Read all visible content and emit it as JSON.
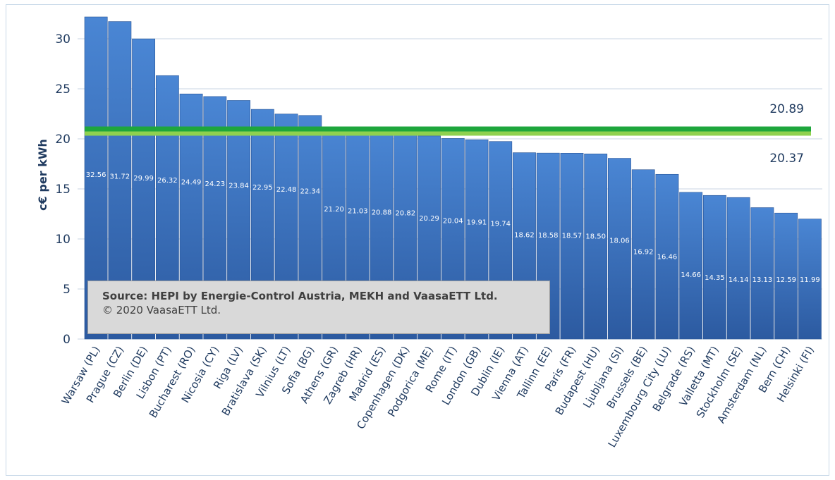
{
  "chart_data": {
    "type": "bar",
    "title": "",
    "xlabel": "",
    "ylabel": "c€ per kWh",
    "ylim": [
      0,
      32
    ],
    "yticks": [
      0,
      5,
      10,
      15,
      20,
      25,
      30
    ],
    "grid": true,
    "categories": [
      "Warsaw (PL)",
      "Prague (CZ)",
      "Berlin (DE)",
      "Lisbon (PT)",
      "Bucharest (RO)",
      "Nicosia (CY)",
      "Riga (LV)",
      "Bratislava (SK)",
      "Vilnius (LT)",
      "Sofia (BG)",
      "Athens (GR)",
      "Zagreb (HR)",
      "Madrid (ES)",
      "Copenhagen (DK)",
      "Podgorica (ME)",
      "Rome (IT)",
      "London (GB)",
      "Dublin (IE)",
      "Vienna (AT)",
      "Tallinn (EE)",
      "Paris (FR)",
      "Budapest (HU)",
      "Ljubljana (SI)",
      "Brussels (BE)",
      "Luxembourg City (LU)",
      "Belgrade (RS)",
      "Valletta (MT)",
      "Stockholm (SE)",
      "Amsterdam (NL)",
      "Bern (CH)",
      "Helsinki (FI)"
    ],
    "values": [
      32.56,
      31.72,
      29.99,
      26.32,
      24.49,
      24.23,
      23.84,
      22.95,
      22.48,
      22.34,
      21.2,
      21.03,
      20.88,
      20.82,
      20.29,
      20.04,
      19.91,
      19.74,
      18.62,
      18.58,
      18.57,
      18.5,
      18.06,
      16.92,
      16.46,
      14.66,
      14.35,
      14.14,
      13.13,
      12.59,
      11.99
    ],
    "value_labels": [
      "32.56",
      "31.72",
      "29.99",
      "26.32",
      "24.49",
      "24.23",
      "23.84",
      "22.95",
      "22.48",
      "22.34",
      "21.20",
      "21.03",
      "20.88",
      "20.82",
      "20.29",
      "20.04",
      "19.91",
      "19.74",
      "18.62",
      "18.58",
      "18.57",
      "18.50",
      "18.06",
      "16.92",
      "16.46",
      "14.66",
      "14.35",
      "14.14",
      "13.13",
      "12.59",
      "11.99"
    ],
    "reference_lines": [
      {
        "value": 20.89,
        "label": "20.89",
        "color": "#1ea63c"
      },
      {
        "value": 20.37,
        "label": "20.37",
        "color": "#8fd14f"
      }
    ],
    "bar_color": "#3f76c2",
    "bar_color_dark": "#2c5aa0"
  },
  "source": {
    "line1": "Source: HEPI by Energie-Control Austria, MEKH and VaasaETT Ltd.",
    "line2": "© 2020 VaasaETT Ltd."
  }
}
